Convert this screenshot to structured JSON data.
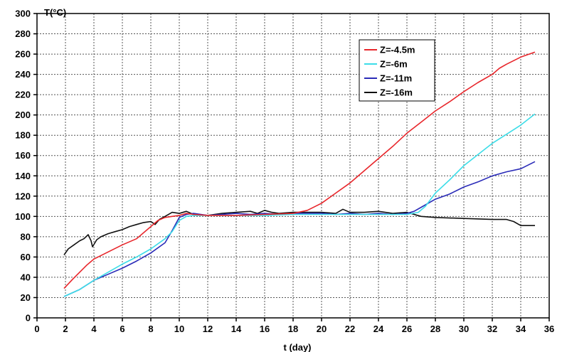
{
  "chart_data": {
    "type": "line",
    "xlabel": "t (day)",
    "ylabel": "T(°C)",
    "xlim": [
      0,
      36
    ],
    "ylim": [
      0,
      300
    ],
    "xticks": [
      0,
      2,
      4,
      6,
      8,
      10,
      12,
      14,
      16,
      18,
      20,
      22,
      24,
      26,
      28,
      30,
      32,
      34,
      36
    ],
    "yticks": [
      0,
      20,
      40,
      60,
      80,
      100,
      120,
      140,
      160,
      180,
      200,
      220,
      240,
      260,
      280,
      300
    ],
    "grid": true,
    "legend_position": "top-right",
    "series": [
      {
        "name": "Z=-4.5m",
        "color": "#e8262b",
        "points": [
          [
            1.9,
            29
          ],
          [
            2.5,
            38
          ],
          [
            3,
            45
          ],
          [
            3.5,
            52
          ],
          [
            4,
            58
          ],
          [
            5,
            65
          ],
          [
            6,
            72
          ],
          [
            7,
            78
          ],
          [
            8,
            90
          ],
          [
            8.5,
            96
          ],
          [
            9,
            99
          ],
          [
            9.5,
            100
          ],
          [
            10,
            101
          ],
          [
            10.5,
            103
          ],
          [
            11,
            102
          ],
          [
            12,
            101
          ],
          [
            14,
            101
          ],
          [
            16,
            102
          ],
          [
            18,
            103
          ],
          [
            19,
            106
          ],
          [
            20,
            113
          ],
          [
            21,
            123
          ],
          [
            22,
            133
          ],
          [
            23,
            145
          ],
          [
            24,
            157
          ],
          [
            25,
            169
          ],
          [
            26,
            182
          ],
          [
            27,
            193
          ],
          [
            28,
            204
          ],
          [
            29,
            213
          ],
          [
            30,
            223
          ],
          [
            31,
            232
          ],
          [
            32,
            240
          ],
          [
            32.5,
            246
          ],
          [
            33,
            250
          ],
          [
            34,
            257
          ],
          [
            35,
            262
          ]
        ]
      },
      {
        "name": "Z=-6m",
        "color": "#3cdde8",
        "points": [
          [
            1.9,
            21
          ],
          [
            3,
            28
          ],
          [
            4,
            37
          ],
          [
            5,
            45
          ],
          [
            6,
            53
          ],
          [
            7,
            60
          ],
          [
            8,
            68
          ],
          [
            9,
            78
          ],
          [
            9.5,
            85
          ],
          [
            10,
            96
          ],
          [
            10.5,
            100
          ],
          [
            11,
            101
          ],
          [
            12,
            101
          ],
          [
            14,
            101
          ],
          [
            16,
            101
          ],
          [
            18,
            102
          ],
          [
            20,
            102
          ],
          [
            22,
            102
          ],
          [
            24,
            102
          ],
          [
            26,
            102
          ],
          [
            26.8,
            104
          ],
          [
            27.3,
            110
          ],
          [
            28,
            123
          ],
          [
            29,
            136
          ],
          [
            30,
            150
          ],
          [
            31,
            161
          ],
          [
            32,
            172
          ],
          [
            33,
            181
          ],
          [
            34,
            190
          ],
          [
            35,
            201
          ]
        ]
      },
      {
        "name": "Z=-11m",
        "color": "#2a2bb8",
        "points": [
          [
            1.9,
            21
          ],
          [
            3,
            28
          ],
          [
            4,
            37
          ],
          [
            5,
            43
          ],
          [
            6,
            49
          ],
          [
            7,
            56
          ],
          [
            8,
            64
          ],
          [
            9,
            74
          ],
          [
            9.5,
            86
          ],
          [
            10,
            99
          ],
          [
            10.5,
            102
          ],
          [
            11,
            103
          ],
          [
            12,
            101
          ],
          [
            13,
            102
          ],
          [
            14,
            103
          ],
          [
            15,
            102
          ],
          [
            16,
            103
          ],
          [
            17,
            102
          ],
          [
            18,
            103
          ],
          [
            19,
            103
          ],
          [
            20,
            103
          ],
          [
            21,
            102
          ],
          [
            22,
            103
          ],
          [
            23,
            102
          ],
          [
            24,
            103
          ],
          [
            25,
            102
          ],
          [
            26,
            103
          ],
          [
            26.5,
            105
          ],
          [
            27,
            109
          ],
          [
            28,
            117
          ],
          [
            29,
            122
          ],
          [
            30,
            129
          ],
          [
            31,
            134
          ],
          [
            32,
            140
          ],
          [
            33,
            144
          ],
          [
            34,
            147
          ],
          [
            35,
            154
          ]
        ]
      },
      {
        "name": "Z=-16m",
        "color": "#111111",
        "points": [
          [
            1.9,
            62
          ],
          [
            2.2,
            68
          ],
          [
            2.6,
            72
          ],
          [
            3,
            76
          ],
          [
            3.3,
            78
          ],
          [
            3.6,
            82
          ],
          [
            3.8,
            76
          ],
          [
            3.9,
            70
          ],
          [
            4.2,
            77
          ],
          [
            4.5,
            80
          ],
          [
            5,
            83
          ],
          [
            5.5,
            85
          ],
          [
            6,
            87
          ],
          [
            6.5,
            90
          ],
          [
            7,
            92
          ],
          [
            7.5,
            94
          ],
          [
            8,
            95
          ],
          [
            8.3,
            92
          ],
          [
            8.6,
            97
          ],
          [
            9,
            100
          ],
          [
            9.5,
            104
          ],
          [
            10,
            103
          ],
          [
            10.5,
            105
          ],
          [
            11,
            102
          ],
          [
            12,
            101
          ],
          [
            13,
            103
          ],
          [
            14,
            104
          ],
          [
            15,
            105
          ],
          [
            15.5,
            103
          ],
          [
            16,
            106
          ],
          [
            16.5,
            104
          ],
          [
            17,
            103
          ],
          [
            18,
            104
          ],
          [
            19,
            104
          ],
          [
            20,
            104
          ],
          [
            21,
            103
          ],
          [
            21.5,
            107
          ],
          [
            22,
            104
          ],
          [
            23,
            104
          ],
          [
            24,
            105
          ],
          [
            25,
            103
          ],
          [
            26,
            104
          ],
          [
            27,
            100
          ],
          [
            28,
            99
          ],
          [
            30,
            98
          ],
          [
            32,
            97
          ],
          [
            33,
            97
          ],
          [
            33.5,
            95
          ],
          [
            34,
            91
          ],
          [
            35,
            91
          ]
        ]
      }
    ]
  }
}
